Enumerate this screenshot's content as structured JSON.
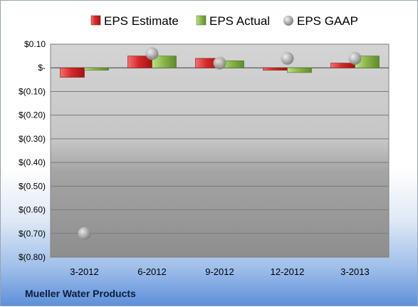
{
  "company": "Mueller Water Products",
  "colors": {
    "estimate": "#d62a2a",
    "actual": "#8db84a",
    "gaap": "#a9a9a9"
  },
  "chart_data": {
    "type": "bar",
    "categories": [
      "3-2012",
      "6-2012",
      "9-2012",
      "12-2012",
      "3-2013"
    ],
    "series": [
      {
        "name": "EPS Estimate",
        "kind": "bar",
        "values": [
          -0.04,
          0.05,
          0.04,
          -0.01,
          0.02
        ]
      },
      {
        "name": "EPS Actual",
        "kind": "bar",
        "values": [
          -0.01,
          0.05,
          0.03,
          -0.02,
          0.05
        ]
      },
      {
        "name": "EPS GAAP",
        "kind": "point",
        "values": [
          -0.7,
          0.06,
          0.02,
          0.04,
          0.04
        ]
      }
    ],
    "ylim": [
      -0.8,
      0.1
    ],
    "yticks": [
      0.1,
      0.0,
      -0.1,
      -0.2,
      -0.3,
      -0.4,
      -0.5,
      -0.6,
      -0.7,
      -0.8
    ],
    "ytick_labels": [
      "$0.10",
      "$-",
      "$(0.10)",
      "$(0.20)",
      "$(0.30)",
      "$(0.40)",
      "$(0.50)",
      "$(0.60)",
      "$(0.70)",
      "$(0.80)"
    ],
    "legend_position": "top",
    "grid": true
  }
}
